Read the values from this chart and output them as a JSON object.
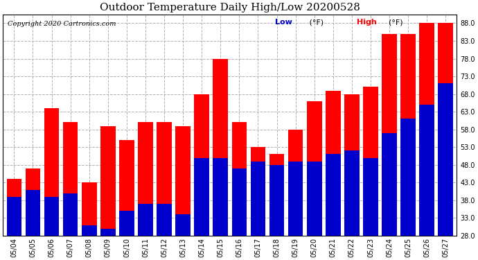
{
  "title": "Outdoor Temperature Daily High/Low 20200528",
  "copyright": "Copyright 2020 Cartronics.com",
  "legend_low": "Low",
  "legend_high": "High",
  "legend_unit": "(°F)",
  "ylabel_right_ticks": [
    28.0,
    33.0,
    38.0,
    43.0,
    48.0,
    53.0,
    58.0,
    63.0,
    68.0,
    73.0,
    78.0,
    83.0,
    88.0
  ],
  "ylim": [
    28.0,
    90.5
  ],
  "dates": [
    "05/04",
    "05/05",
    "05/06",
    "05/07",
    "05/08",
    "05/09",
    "05/10",
    "05/11",
    "05/12",
    "05/13",
    "05/14",
    "05/15",
    "05/16",
    "05/17",
    "05/18",
    "05/19",
    "05/20",
    "05/21",
    "05/22",
    "05/23",
    "05/24",
    "05/25",
    "05/26",
    "05/27"
  ],
  "highs": [
    44,
    47,
    64,
    60,
    43,
    59,
    55,
    60,
    60,
    59,
    68,
    78,
    60,
    53,
    51,
    58,
    66,
    69,
    68,
    70,
    85,
    85,
    88,
    88
  ],
  "lows": [
    39,
    41,
    39,
    40,
    31,
    30,
    35,
    37,
    37,
    34,
    50,
    50,
    47,
    49,
    48,
    49,
    49,
    51,
    52,
    50,
    57,
    61,
    65,
    71
  ],
  "color_high": "#ff0000",
  "color_low": "#0000cc",
  "bar_width": 0.8,
  "background_color": "#ffffff",
  "grid_color": "#b0b0b0",
  "title_fontsize": 11,
  "tick_fontsize": 7,
  "legend_fontsize": 8,
  "copyright_fontsize": 7
}
